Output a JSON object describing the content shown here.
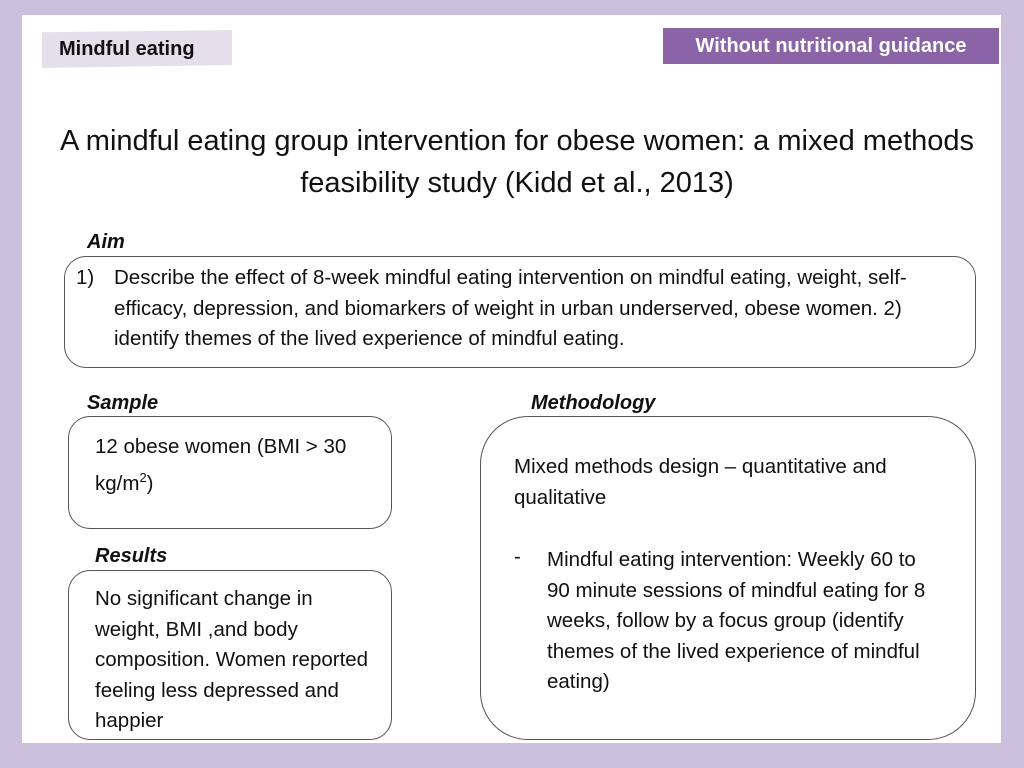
{
  "header": {
    "left_tag": "Mindful eating",
    "right_tag": "Without nutritional guidance"
  },
  "title": "A mindful eating group intervention for obese women: a mixed methods feasibility study (Kidd et al., 2013)",
  "aim": {
    "heading": "Aim",
    "number": "1)",
    "text": "Describe the effect of  8-week mindful eating intervention on mindful eating, weight, self-efficacy, depression, and biomarkers of weight in urban underserved, obese women.   2) identify themes of the lived experience of mindful eating."
  },
  "sample": {
    "heading": "Sample",
    "text_before": "12 obese women (BMI > 30 kg/m",
    "superscript": "2",
    "text_after": ")"
  },
  "results": {
    "heading": "Results",
    "text": "No significant change in weight, BMI ,and body composition. Women reported feeling less depressed and happier"
  },
  "methodology": {
    "heading": "Methodology",
    "intro": "Mixed methods design – quantitative and qualitative",
    "bullet_marker": "-",
    "bullet": "Mindful eating intervention: Weekly 60 to 90 minute sessions of mindful eating for 8 weeks, follow by a focus group (identify themes of the lived experience of mindful eating)"
  },
  "colors": {
    "background": "#cdc0dc",
    "right_tag_bg": "#8a64a6",
    "left_tag_bg": "#e4dfea"
  }
}
